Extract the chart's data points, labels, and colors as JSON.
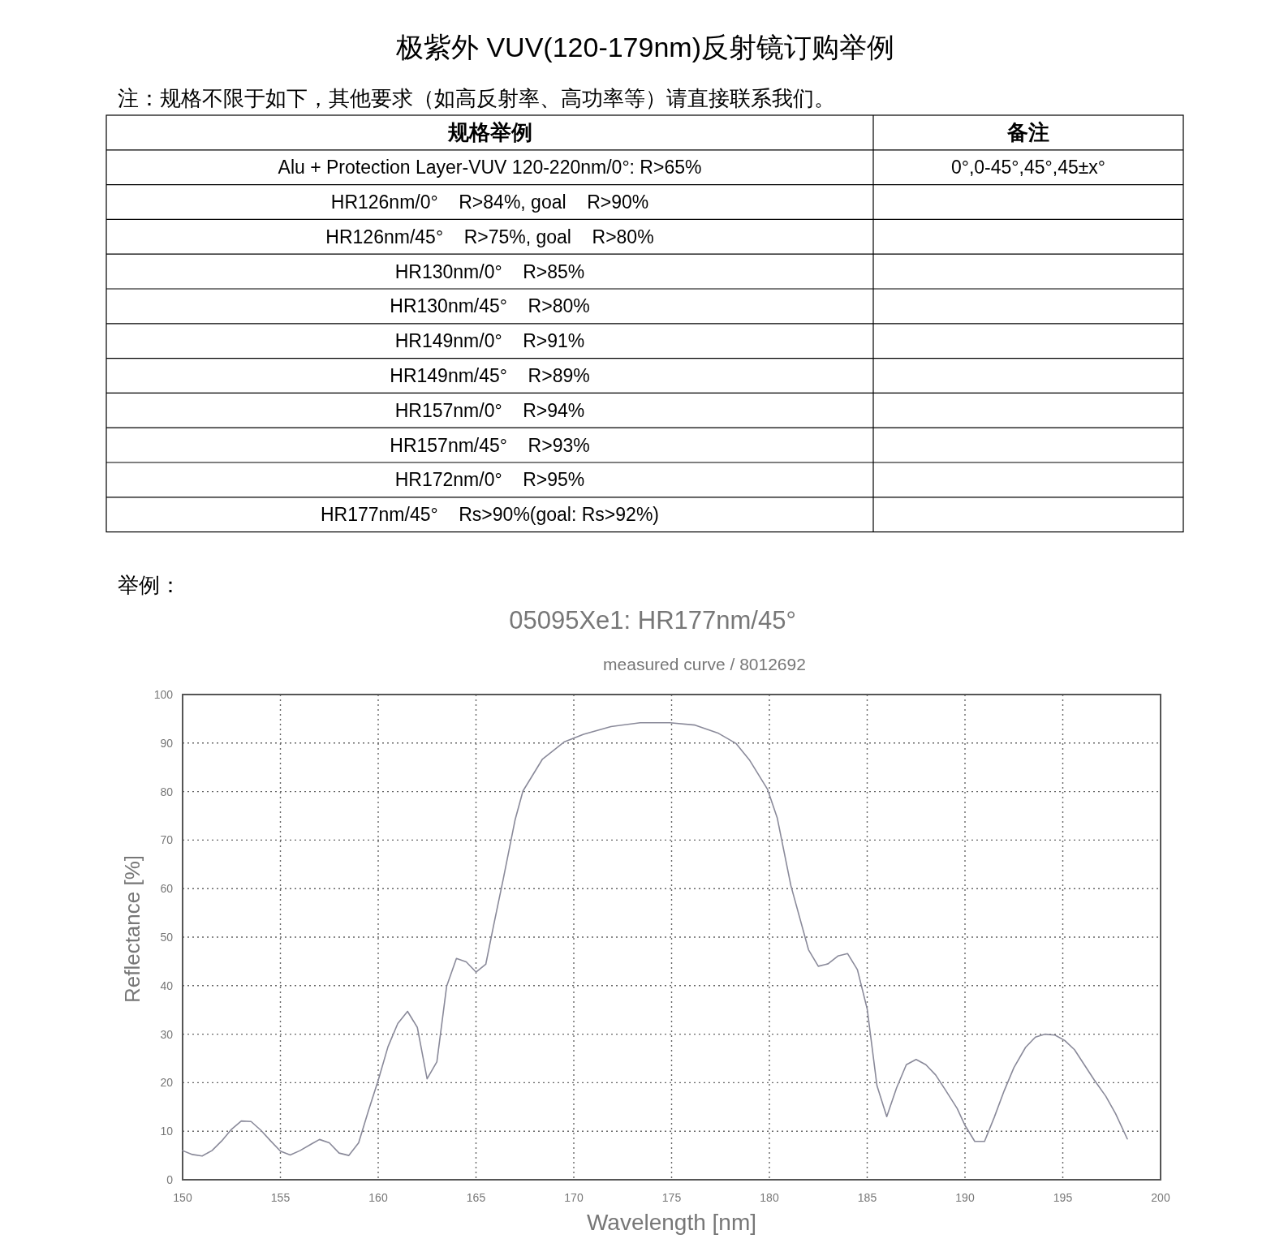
{
  "chart_data": [
    {
      "type": "other",
      "title": "极紫外 VUV(120-179nm)反射镜订购举例",
      "subtitle": "注：规格不限于如下，其他要求（如高反射率、高功率等）请直接联系我们。",
      "categories": [
        "规格举例",
        "备注"
      ],
      "y_categories": [
        "Alu + Protection Layer-VUV 120-220nm/0°: R>65%",
        "HR126nm/0°    R>84%, goal    R>90%",
        "HR126nm/45°    R>75%, goal    R>80%",
        "HR130nm/0°    R>85%",
        "HR130nm/45°    R>80%",
        "HR149nm/0°    R>91%",
        "HR149nm/45°    R>89%",
        "HR157nm/0°    R>94%",
        "HR157nm/45°    R>93%",
        "HR172nm/0°    R>95%",
        "HR177nm/45°    Rs>90%(goal: Rs>92%)"
      ],
      "y2_categories": [
        "0°,0-45°,45°,45±x°",
        null,
        null,
        null,
        null,
        null,
        null,
        null,
        null,
        null,
        null
      ]
    },
    {
      "type": "line",
      "annotations": [
        "举例："
      ],
      "title": "05095Xe1: HR177nm/45°",
      "subtitle": "measured curve / 8012692",
      "xlabel": "Wavelength [nm]",
      "ylabel": "Reflectance [%]",
      "color": "#8a8a9a",
      "grid": true,
      "xlim": [
        150,
        200
      ],
      "ylim": [
        0,
        100
      ],
      "xticks": [
        150,
        155,
        160,
        165,
        170,
        175,
        180,
        185,
        190,
        195,
        200
      ],
      "yticks": [
        0,
        10,
        20,
        30,
        40,
        50,
        60,
        70,
        80,
        90,
        100
      ],
      "x": [
        150,
        150.5,
        151,
        151.5,
        152,
        152.5,
        153,
        153.5,
        154,
        154.5,
        155,
        155.5,
        156,
        156.6,
        157,
        157.5,
        158,
        158.5,
        159,
        159.5,
        160,
        160.5,
        161,
        161.5,
        162,
        162.5,
        163,
        163.5,
        164,
        164.5,
        165,
        165.5,
        165.9,
        166.4,
        167,
        167.4,
        168.4,
        169.5,
        170.5,
        171.9,
        173.4,
        174.9,
        176.2,
        177.4,
        178.3,
        179,
        179.9,
        180.4,
        181.1,
        182,
        182.5,
        183,
        183.5,
        184,
        184.5,
        185,
        185.5,
        186,
        186.5,
        187,
        187.5,
        188,
        188.5,
        189,
        189.6,
        190,
        190.5,
        191,
        191.5,
        192,
        192.5,
        193.1,
        193.6,
        194.1,
        194.6,
        195.1,
        195.6,
        196.1,
        196.6,
        197.2,
        197.7,
        198.3
      ],
      "values": [
        6,
        5.2,
        4.9,
        6,
        8,
        10.4,
        12.1,
        12,
        10.2,
        8,
        5.9,
        5.1,
        6,
        7.4,
        8.3,
        7.6,
        5.5,
        5,
        7.6,
        14.2,
        20.5,
        27.4,
        32.2,
        34.7,
        31.4,
        20.8,
        24.3,
        39.9,
        45.6,
        44.9,
        42.8,
        44.4,
        52.4,
        62.1,
        74.2,
        80.1,
        86.7,
        90.2,
        91.8,
        93.4,
        94.2,
        94.2,
        93.7,
        92,
        89.9,
        86.4,
        80.5,
        74.6,
        60.6,
        47.4,
        44,
        44.5,
        46.1,
        46.6,
        43.3,
        35.2,
        19.4,
        13,
        18.9,
        23.7,
        24.8,
        23.7,
        21.6,
        18.5,
        14.7,
        11.2,
        7.9,
        7.9,
        12.9,
        18.3,
        23.1,
        27.3,
        29.4,
        30,
        29.8,
        28.7,
        26.8,
        23.7,
        20.6,
        17.2,
        13.6,
        8.4
      ]
    }
  ]
}
